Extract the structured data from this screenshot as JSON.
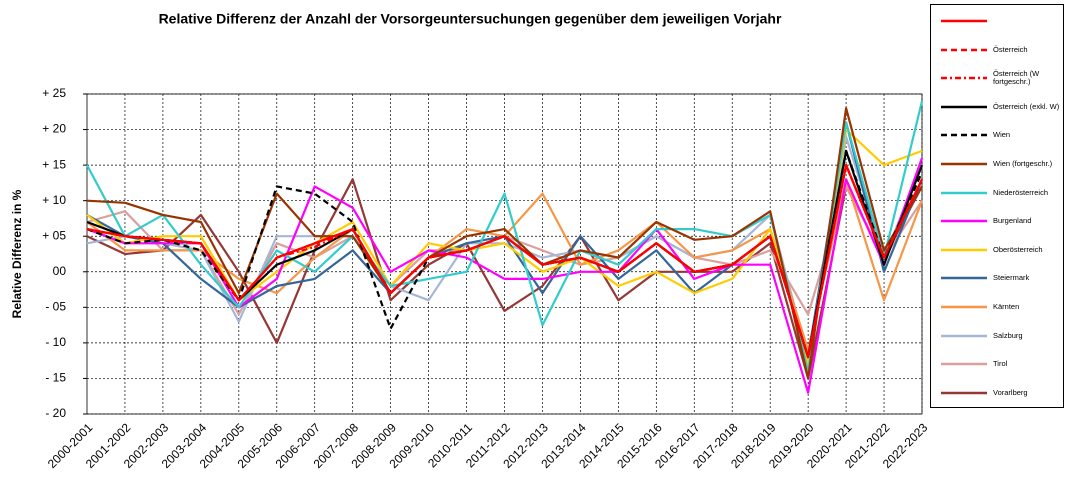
{
  "chart_data": {
    "type": "line",
    "title": "Relative Differenz der Anzahl der Vorsorgeuntersuchungen gegenüber dem jeweiligen Vorjahr",
    "y_label": "Relative Differenz in %",
    "categories": [
      "2000-2001",
      "2001-2002",
      "2002-2003",
      "2003-2004",
      "2004-2005",
      "2005-2006",
      "2006-2007",
      "2007-2008",
      "2008-2009",
      "2009-2010",
      "2010-2011",
      "2011-2012",
      "2012-2013",
      "2013-2014",
      "2014-2015",
      "2015-2016",
      "2016-2017",
      "2017-2018",
      "2018-2019",
      "2019-2020",
      "2020-2021",
      "2021-2022",
      "2022-2023"
    ],
    "ylim": [
      -20,
      25
    ],
    "yticks": [
      {
        "value": 25,
        "label": "+ 25"
      },
      {
        "value": 20,
        "label": "+ 20"
      },
      {
        "value": 15,
        "label": "+ 15"
      },
      {
        "value": 10,
        "label": "+ 10"
      },
      {
        "value": 5,
        "label": "+ 05"
      },
      {
        "value": 0,
        "label": "00"
      },
      {
        "value": -5,
        "label": "- 05"
      },
      {
        "value": -10,
        "label": "- 10"
      },
      {
        "value": -15,
        "label": "- 15"
      },
      {
        "value": -20,
        "label": "- 20"
      }
    ],
    "grid": true,
    "legend": "right",
    "series": [
      {
        "color": "#ff0000",
        "style": "solid",
        "values": [
          6,
          5,
          4.5,
          4,
          -4,
          2,
          4,
          6,
          -3,
          2,
          3,
          5,
          1,
          2,
          0,
          4,
          0,
          1,
          5,
          -12,
          15,
          2,
          13
        ]
      },
      {
        "name": "Österreich",
        "color": "#ff0000",
        "style": "dashed",
        "values": [
          6,
          5,
          4.5,
          4,
          -4,
          2,
          4,
          6,
          -3,
          2,
          3,
          5,
          1,
          2,
          0,
          4,
          0,
          1,
          5,
          -12,
          15,
          2,
          13
        ]
      },
      {
        "name": "Österreich (W fortgeschr.)",
        "color": "#ff0000",
        "style": "dashdot",
        "values": [
          6,
          5,
          4.5,
          4,
          -4,
          2,
          3.5,
          6,
          -3,
          2,
          3,
          5,
          1,
          2,
          0,
          4,
          0,
          1,
          5,
          -12,
          15,
          2,
          13
        ]
      },
      {
        "name": "Österreich (exkl. W)",
        "color": "#000000",
        "style": "solid",
        "values": [
          7,
          5,
          4.5,
          4,
          -4,
          1,
          3,
          6,
          -3,
          2,
          3,
          5,
          1,
          2,
          0,
          4,
          0,
          1,
          5,
          -12,
          17,
          1,
          15
        ]
      },
      {
        "name": "Wien",
        "color": "#000000",
        "style": "dashed",
        "values": [
          6,
          4,
          4.5,
          3,
          -4,
          12,
          11,
          7,
          -8,
          2,
          3,
          5,
          1,
          2,
          0,
          4,
          0,
          1,
          5,
          -12,
          17,
          2,
          14
        ]
      },
      {
        "name": "Wien (fortgeschr.)",
        "color": "#993300",
        "style": "solid",
        "values": [
          10,
          9.7,
          8,
          7,
          -3,
          11,
          5,
          5,
          -3,
          2,
          5,
          6,
          1,
          3,
          2,
          7,
          4.5,
          5,
          8.5,
          -15,
          23,
          3,
          12
        ]
      },
      {
        "name": "Niederösterreich",
        "color": "#33cccc",
        "style": "solid",
        "values": [
          15,
          5,
          8,
          1,
          -5,
          3,
          0,
          5,
          -2,
          -1,
          0,
          11,
          -7.5,
          3,
          1,
          6,
          6,
          5,
          8,
          -14,
          21,
          2,
          24
        ]
      },
      {
        "name": "Burgenland",
        "color": "#ff00ff",
        "style": "solid",
        "values": [
          6,
          4,
          4,
          4,
          -5,
          -1,
          12,
          9,
          0,
          3,
          2,
          -1,
          -1,
          0,
          0,
          6,
          -1,
          1,
          1,
          -17,
          13,
          1,
          16
        ]
      },
      {
        "name": "Oberösterreich",
        "color": "#ffcc00",
        "style": "solid",
        "values": [
          8,
          4,
          5,
          5,
          -4,
          0,
          4,
          7,
          -2,
          4,
          3,
          4,
          0,
          2,
          -2,
          0,
          -3,
          -1,
          6,
          -13,
          20,
          15,
          17
        ]
      },
      {
        "name": "Steiermark",
        "color": "#336699",
        "style": "solid",
        "values": [
          8,
          5,
          4,
          -1,
          -5,
          -2,
          -1,
          3,
          -3,
          2,
          4,
          5,
          -3,
          5,
          -1,
          3,
          -3,
          1,
          5,
          -12,
          21,
          0,
          13
        ]
      },
      {
        "name": "Kärnten",
        "color": "#f79646",
        "style": "solid",
        "values": [
          7,
          3,
          3,
          3,
          -1,
          -3,
          2,
          6,
          -3,
          2,
          6,
          5,
          11,
          1,
          3,
          7,
          2,
          3,
          6,
          -11,
          13,
          -4,
          10
        ]
      },
      {
        "name": "Salzburg",
        "color": "#a6b6d6",
        "style": "solid",
        "values": [
          4,
          5,
          4,
          3,
          -7,
          5,
          5,
          5,
          -2,
          -4,
          4,
          4,
          2,
          3,
          2,
          5,
          2,
          3,
          8,
          -12,
          19,
          2,
          15
        ]
      },
      {
        "name": "Tirol",
        "color": "#d9a09d",
        "style": "solid",
        "values": [
          7,
          8.5,
          3,
          3,
          -6,
          4,
          2,
          5,
          -2,
          3,
          3,
          5,
          3,
          1,
          2,
          5,
          2,
          1,
          3,
          -6,
          12,
          2,
          10
        ]
      },
      {
        "name": "Vorarlberg",
        "color": "#953735",
        "style": "solid",
        "values": [
          5,
          2.5,
          3,
          8,
          0,
          -10,
          3,
          13,
          -4,
          1,
          4,
          -5.5,
          -2,
          5,
          -4,
          0,
          0,
          0,
          4,
          -15,
          12,
          2,
          12
        ]
      }
    ]
  }
}
